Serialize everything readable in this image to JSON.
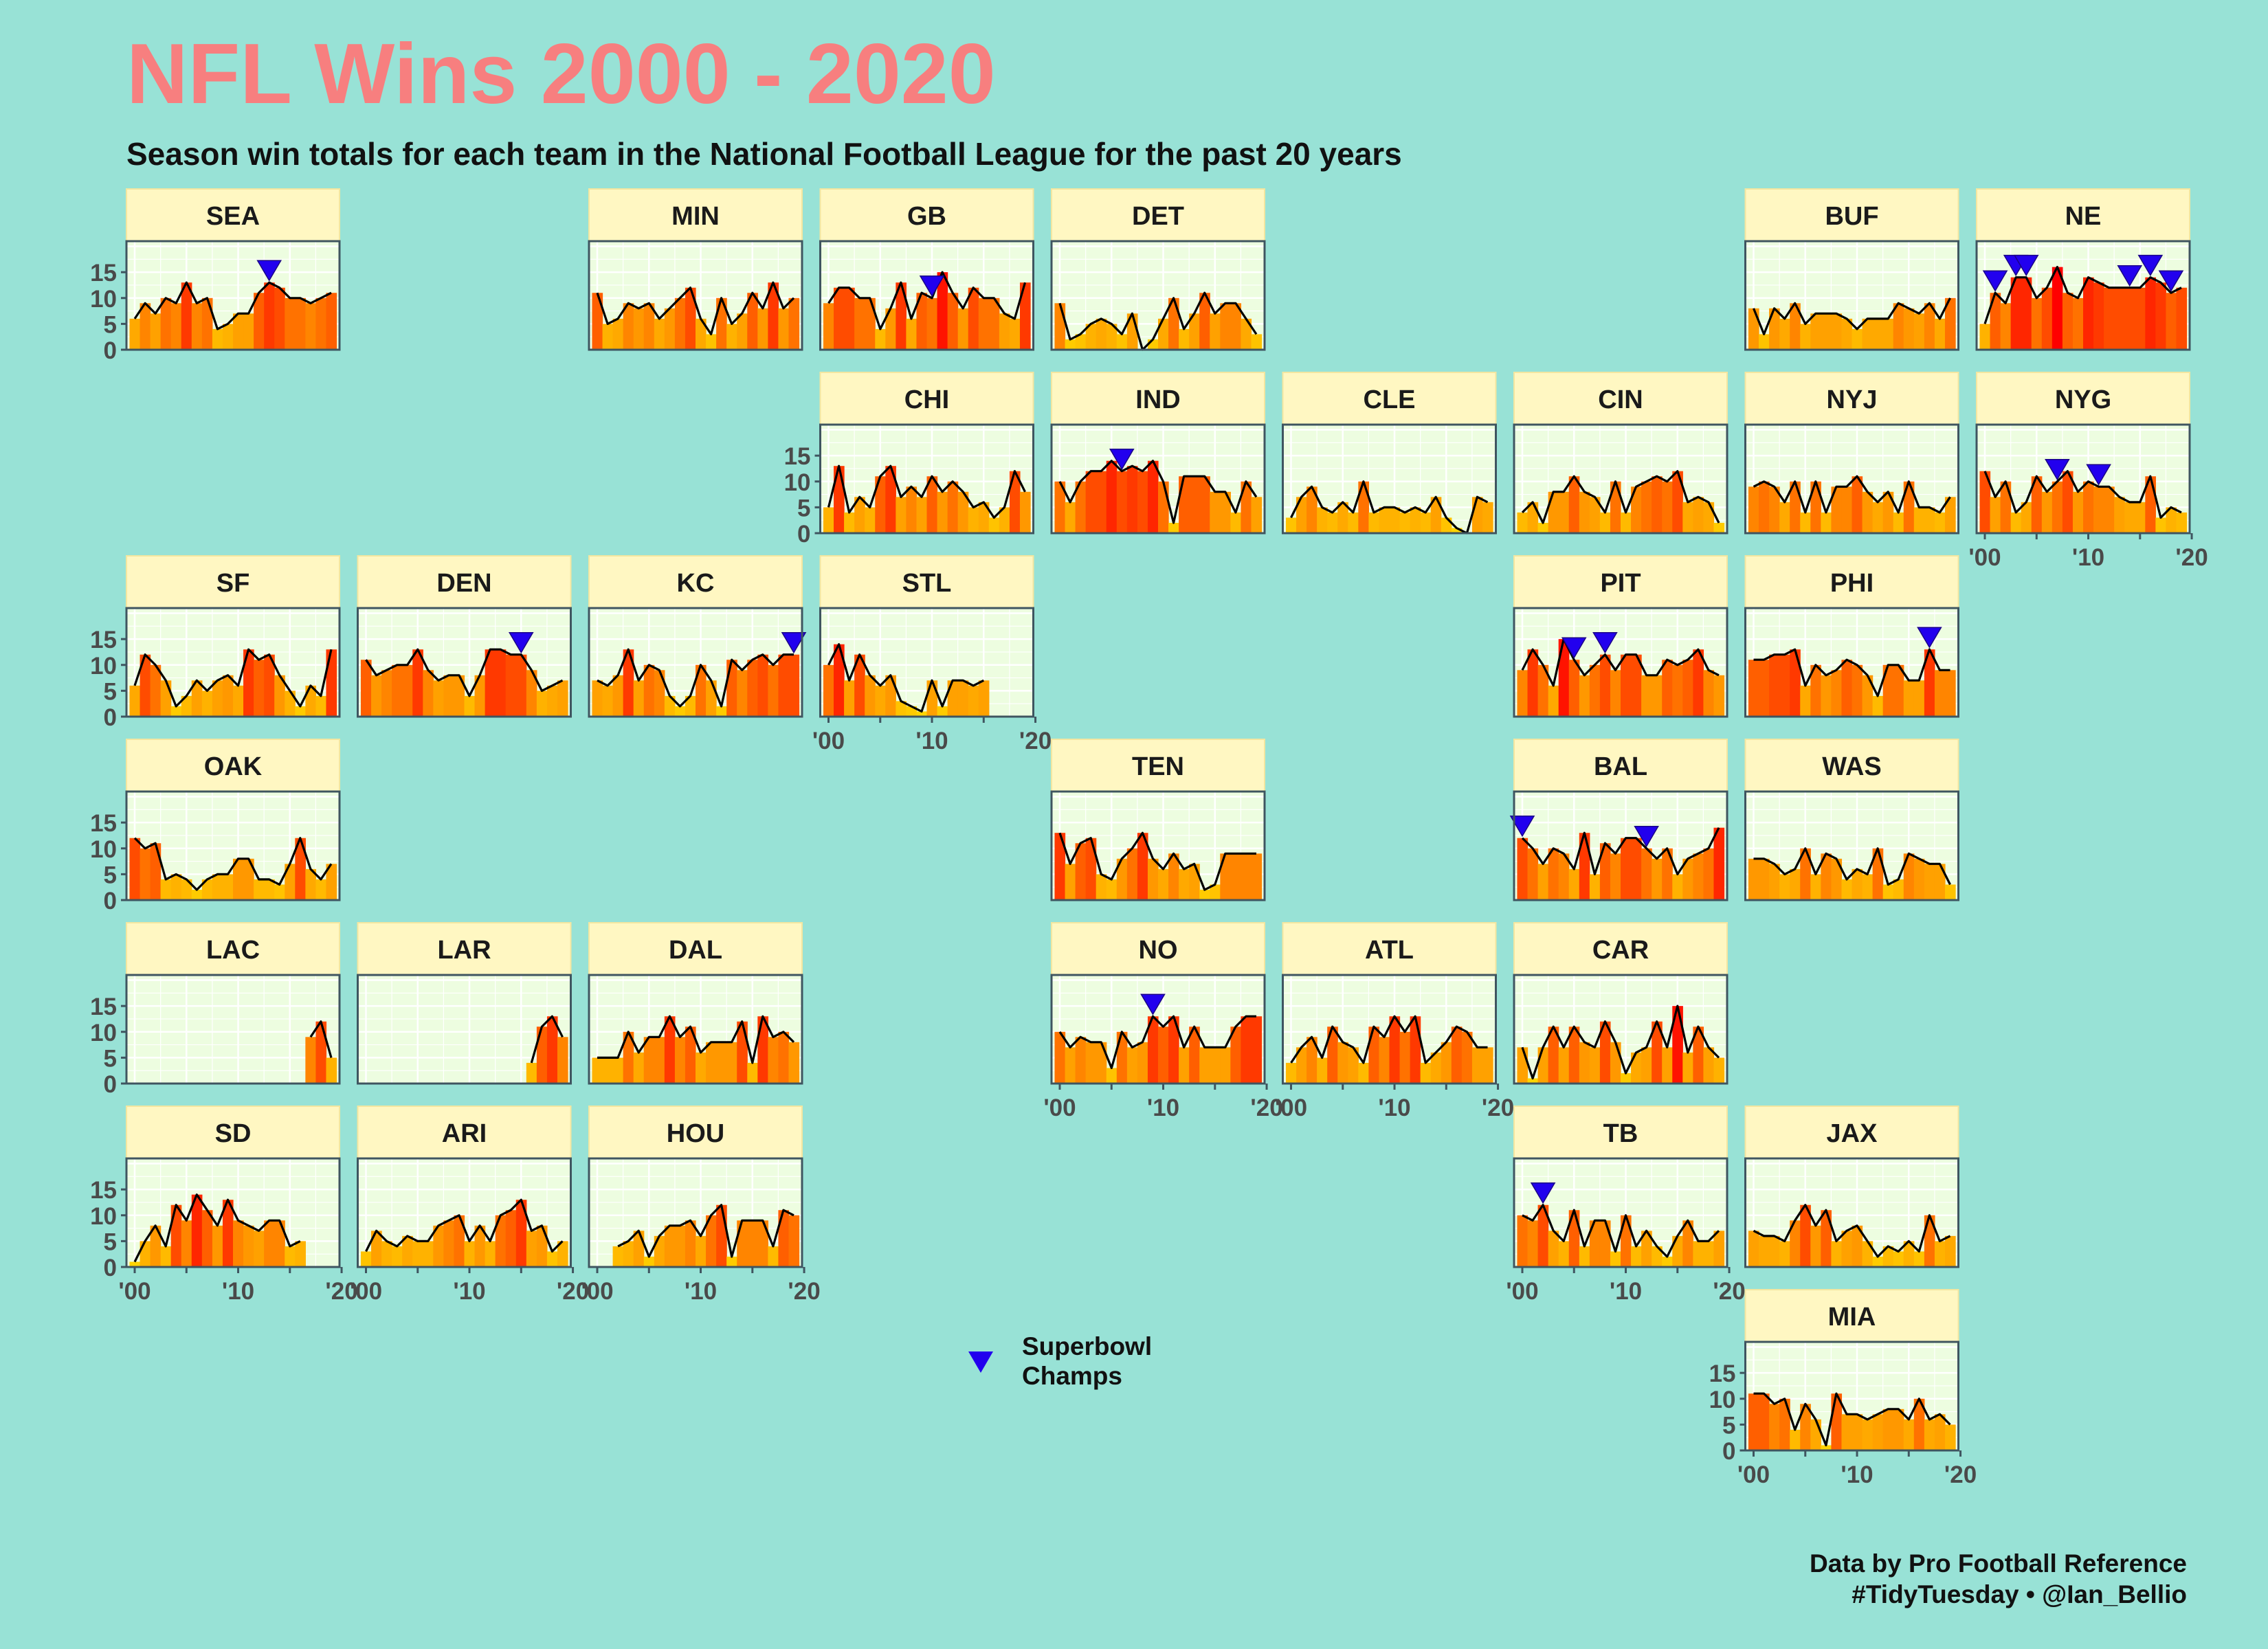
{
  "title": "NFL Wins 2000 - 2020",
  "subtitle": "Season win totals for each team in the National Football League for the past 20 years",
  "caption": [
    "Data by Pro Football Reference",
    "#TidyTuesday • @Ian_Bellio"
  ],
  "legend": {
    "label_lines": [
      "Superbowl",
      "Champs"
    ],
    "symbol_color": "#2200ee"
  },
  "colors": {
    "background": "#98e2d6",
    "panel": "#edfde0",
    "strip": "#fff7c2",
    "title": "#f77f7f",
    "bar_low": "#ffdc00",
    "bar_mid": "#ff9800",
    "bar_high": "#ff0000"
  },
  "chart_data": {
    "type": "bar",
    "x_range": [
      2000,
      2019
    ],
    "y_ticks": [
      0,
      5,
      10,
      15
    ],
    "x_tick_labels": [
      "'00",
      "'10",
      "'20"
    ],
    "x_tick_values": [
      2000,
      2010,
      2020
    ],
    "panels": [
      {
        "team": "SEA",
        "row": 0,
        "col": 0,
        "start": 2000,
        "wins": [
          6,
          9,
          7,
          10,
          9,
          13,
          9,
          10,
          4,
          5,
          7,
          7,
          11,
          13,
          12,
          10,
          10,
          9,
          10,
          11
        ],
        "champs": [
          2013
        ]
      },
      {
        "team": "MIN",
        "row": 0,
        "col": 2,
        "start": 2000,
        "wins": [
          11,
          5,
          6,
          9,
          8,
          9,
          6,
          8,
          10,
          12,
          6,
          3,
          10,
          5,
          7,
          11,
          8,
          13,
          8,
          10
        ],
        "champs": []
      },
      {
        "team": "GB",
        "row": 0,
        "col": 3,
        "start": 2000,
        "wins": [
          9,
          12,
          12,
          10,
          10,
          4,
          8,
          13,
          6,
          11,
          10,
          15,
          11,
          8,
          12,
          10,
          10,
          7,
          6,
          13
        ],
        "champs": [
          2010
        ]
      },
      {
        "team": "DET",
        "row": 0,
        "col": 4,
        "start": 2000,
        "wins": [
          9,
          2,
          3,
          5,
          6,
          5,
          3,
          7,
          0,
          2,
          6,
          10,
          4,
          7,
          11,
          7,
          9,
          9,
          6,
          3
        ],
        "champs": []
      },
      {
        "team": "BUF",
        "row": 0,
        "col": 7,
        "start": 2000,
        "wins": [
          8,
          3,
          8,
          6,
          9,
          5,
          7,
          7,
          7,
          6,
          4,
          6,
          6,
          6,
          9,
          8,
          7,
          9,
          6,
          10
        ],
        "champs": []
      },
      {
        "team": "NE",
        "row": 0,
        "col": 8,
        "start": 2000,
        "wins": [
          5,
          11,
          9,
          14,
          14,
          10,
          12,
          16,
          11,
          10,
          14,
          13,
          12,
          12,
          12,
          12,
          14,
          13,
          11,
          12
        ],
        "champs": [
          2001,
          2003,
          2004,
          2014,
          2016,
          2018
        ]
      },
      {
        "team": "CHI",
        "row": 1,
        "col": 3,
        "start": 2000,
        "wins": [
          5,
          13,
          4,
          7,
          5,
          11,
          13,
          7,
          9,
          7,
          11,
          8,
          10,
          8,
          5,
          6,
          3,
          5,
          12,
          8
        ],
        "champs": []
      },
      {
        "team": "IND",
        "row": 1,
        "col": 4,
        "start": 2000,
        "wins": [
          10,
          6,
          10,
          12,
          12,
          14,
          12,
          13,
          12,
          14,
          10,
          2,
          11,
          11,
          11,
          8,
          8,
          4,
          10,
          7
        ],
        "champs": [
          2006
        ]
      },
      {
        "team": "CLE",
        "row": 1,
        "col": 5,
        "start": 2000,
        "wins": [
          3,
          7,
          9,
          5,
          4,
          6,
          4,
          10,
          4,
          5,
          5,
          4,
          5,
          4,
          7,
          3,
          1,
          0,
          7,
          6
        ],
        "champs": []
      },
      {
        "team": "CIN",
        "row": 1,
        "col": 6,
        "start": 2000,
        "wins": [
          4,
          6,
          2,
          8,
          8,
          11,
          8,
          7,
          4,
          10,
          4,
          9,
          10,
          11,
          10,
          12,
          6,
          7,
          6,
          2
        ],
        "champs": []
      },
      {
        "team": "NYJ",
        "row": 1,
        "col": 7,
        "start": 2000,
        "wins": [
          9,
          10,
          9,
          6,
          10,
          4,
          10,
          4,
          9,
          9,
          11,
          8,
          6,
          8,
          4,
          10,
          5,
          5,
          4,
          7
        ],
        "champs": []
      },
      {
        "team": "NYG",
        "row": 1,
        "col": 8,
        "start": 2000,
        "wins": [
          12,
          7,
          10,
          4,
          6,
          11,
          8,
          10,
          12,
          8,
          10,
          9,
          9,
          7,
          6,
          6,
          11,
          3,
          5,
          4
        ],
        "champs": [
          2007,
          2011
        ]
      },
      {
        "team": "SF",
        "row": 2,
        "col": 0,
        "start": 2000,
        "wins": [
          6,
          12,
          10,
          7,
          2,
          4,
          7,
          5,
          7,
          8,
          6,
          13,
          11,
          12,
          8,
          5,
          2,
          6,
          4,
          13
        ],
        "champs": []
      },
      {
        "team": "DEN",
        "row": 2,
        "col": 1,
        "start": 2000,
        "wins": [
          11,
          8,
          9,
          10,
          10,
          13,
          9,
          7,
          8,
          8,
          4,
          8,
          13,
          13,
          12,
          12,
          9,
          5,
          6,
          7
        ],
        "champs": [
          2015
        ]
      },
      {
        "team": "KC",
        "row": 2,
        "col": 2,
        "start": 2000,
        "wins": [
          7,
          6,
          8,
          13,
          7,
          10,
          9,
          4,
          2,
          4,
          10,
          7,
          2,
          11,
          9,
          11,
          12,
          10,
          12,
          12
        ],
        "champs": [
          2019
        ]
      },
      {
        "team": "STL",
        "row": 2,
        "col": 3,
        "start": 2000,
        "wins": [
          10,
          14,
          7,
          12,
          8,
          6,
          8,
          3,
          2,
          1,
          7,
          2,
          7,
          7,
          6,
          7
        ],
        "champs": []
      },
      {
        "team": "PIT",
        "row": 2,
        "col": 6,
        "start": 2000,
        "wins": [
          9,
          13,
          10,
          6,
          15,
          11,
          8,
          10,
          12,
          9,
          12,
          12,
          8,
          8,
          11,
          10,
          11,
          13,
          9,
          8
        ],
        "champs": [
          2005,
          2008
        ]
      },
      {
        "team": "PHI",
        "row": 2,
        "col": 7,
        "start": 2000,
        "wins": [
          11,
          11,
          12,
          12,
          13,
          6,
          10,
          8,
          9,
          11,
          10,
          8,
          4,
          10,
          10,
          7,
          7,
          13,
          9,
          9
        ],
        "champs": [
          2017
        ]
      },
      {
        "team": "OAK",
        "row": 3,
        "col": 0,
        "start": 2000,
        "wins": [
          12,
          10,
          11,
          4,
          5,
          4,
          2,
          4,
          5,
          5,
          8,
          8,
          4,
          4,
          3,
          7,
          12,
          6,
          4,
          7
        ],
        "champs": []
      },
      {
        "team": "TEN",
        "row": 3,
        "col": 4,
        "start": 2000,
        "wins": [
          13,
          7,
          11,
          12,
          5,
          4,
          8,
          10,
          13,
          8,
          6,
          9,
          6,
          7,
          2,
          3,
          9,
          9,
          9,
          9
        ],
        "champs": []
      },
      {
        "team": "BAL",
        "row": 3,
        "col": 6,
        "start": 2000,
        "wins": [
          12,
          10,
          7,
          10,
          9,
          6,
          13,
          5,
          11,
          9,
          12,
          12,
          10,
          8,
          10,
          5,
          8,
          9,
          10,
          14
        ],
        "champs": [
          2000,
          2012
        ]
      },
      {
        "team": "WAS",
        "row": 3,
        "col": 7,
        "start": 2000,
        "wins": [
          8,
          8,
          7,
          5,
          6,
          10,
          5,
          9,
          8,
          4,
          6,
          5,
          10,
          3,
          4,
          9,
          8,
          7,
          7,
          3
        ],
        "champs": []
      },
      {
        "team": "LAC",
        "row": 4,
        "col": 0,
        "start": 2017,
        "wins": [
          9,
          12,
          5
        ],
        "champs": []
      },
      {
        "team": "LAR",
        "row": 4,
        "col": 1,
        "start": 2016,
        "wins": [
          4,
          11,
          13,
          9
        ],
        "champs": []
      },
      {
        "team": "DAL",
        "row": 4,
        "col": 2,
        "start": 2000,
        "wins": [
          5,
          5,
          5,
          10,
          6,
          9,
          9,
          13,
          9,
          11,
          6,
          8,
          8,
          8,
          12,
          4,
          13,
          9,
          10,
          8
        ],
        "champs": []
      },
      {
        "team": "NO",
        "row": 4,
        "col": 4,
        "start": 2000,
        "wins": [
          10,
          7,
          9,
          8,
          8,
          3,
          10,
          7,
          8,
          13,
          11,
          13,
          7,
          11,
          7,
          7,
          7,
          11,
          13,
          13
        ],
        "champs": [
          2009
        ]
      },
      {
        "team": "ATL",
        "row": 4,
        "col": 5,
        "start": 2000,
        "wins": [
          4,
          7,
          9,
          5,
          11,
          8,
          7,
          4,
          11,
          9,
          13,
          10,
          13,
          4,
          6,
          8,
          11,
          10,
          7,
          7
        ],
        "champs": []
      },
      {
        "team": "CAR",
        "row": 4,
        "col": 6,
        "start": 2000,
        "wins": [
          7,
          1,
          7,
          11,
          7,
          11,
          8,
          7,
          12,
          8,
          2,
          6,
          7,
          12,
          7,
          15,
          6,
          11,
          7,
          5
        ],
        "champs": []
      },
      {
        "team": "SD",
        "row": 5,
        "col": 0,
        "start": 2000,
        "wins": [
          1,
          5,
          8,
          4,
          12,
          9,
          14,
          11,
          8,
          13,
          9,
          8,
          7,
          9,
          9,
          4,
          5
        ],
        "champs": []
      },
      {
        "team": "ARI",
        "row": 5,
        "col": 1,
        "start": 2000,
        "wins": [
          3,
          7,
          5,
          4,
          6,
          5,
          5,
          8,
          9,
          10,
          5,
          8,
          5,
          10,
          11,
          13,
          7,
          8,
          3,
          5
        ],
        "champs": []
      },
      {
        "team": "HOU",
        "row": 5,
        "col": 2,
        "start": 2002,
        "wins": [
          4,
          5,
          7,
          2,
          6,
          8,
          8,
          9,
          6,
          10,
          12,
          2,
          9,
          9,
          9,
          4,
          11,
          10
        ],
        "champs": []
      },
      {
        "team": "TB",
        "row": 5,
        "col": 6,
        "start": 2000,
        "wins": [
          10,
          9,
          12,
          7,
          5,
          11,
          4,
          9,
          9,
          3,
          10,
          4,
          7,
          4,
          2,
          6,
          9,
          5,
          5,
          7
        ],
        "champs": [
          2002
        ]
      },
      {
        "team": "JAX",
        "row": 5,
        "col": 7,
        "start": 2000,
        "wins": [
          7,
          6,
          6,
          5,
          9,
          12,
          8,
          11,
          5,
          7,
          8,
          5,
          2,
          4,
          3,
          5,
          3,
          10,
          5,
          6
        ],
        "champs": []
      },
      {
        "team": "MIA",
        "row": 6,
        "col": 7,
        "start": 2000,
        "wins": [
          11,
          11,
          9,
          10,
          4,
          9,
          6,
          1,
          11,
          7,
          7,
          6,
          7,
          8,
          8,
          6,
          10,
          6,
          7,
          5
        ],
        "champs": []
      }
    ]
  }
}
